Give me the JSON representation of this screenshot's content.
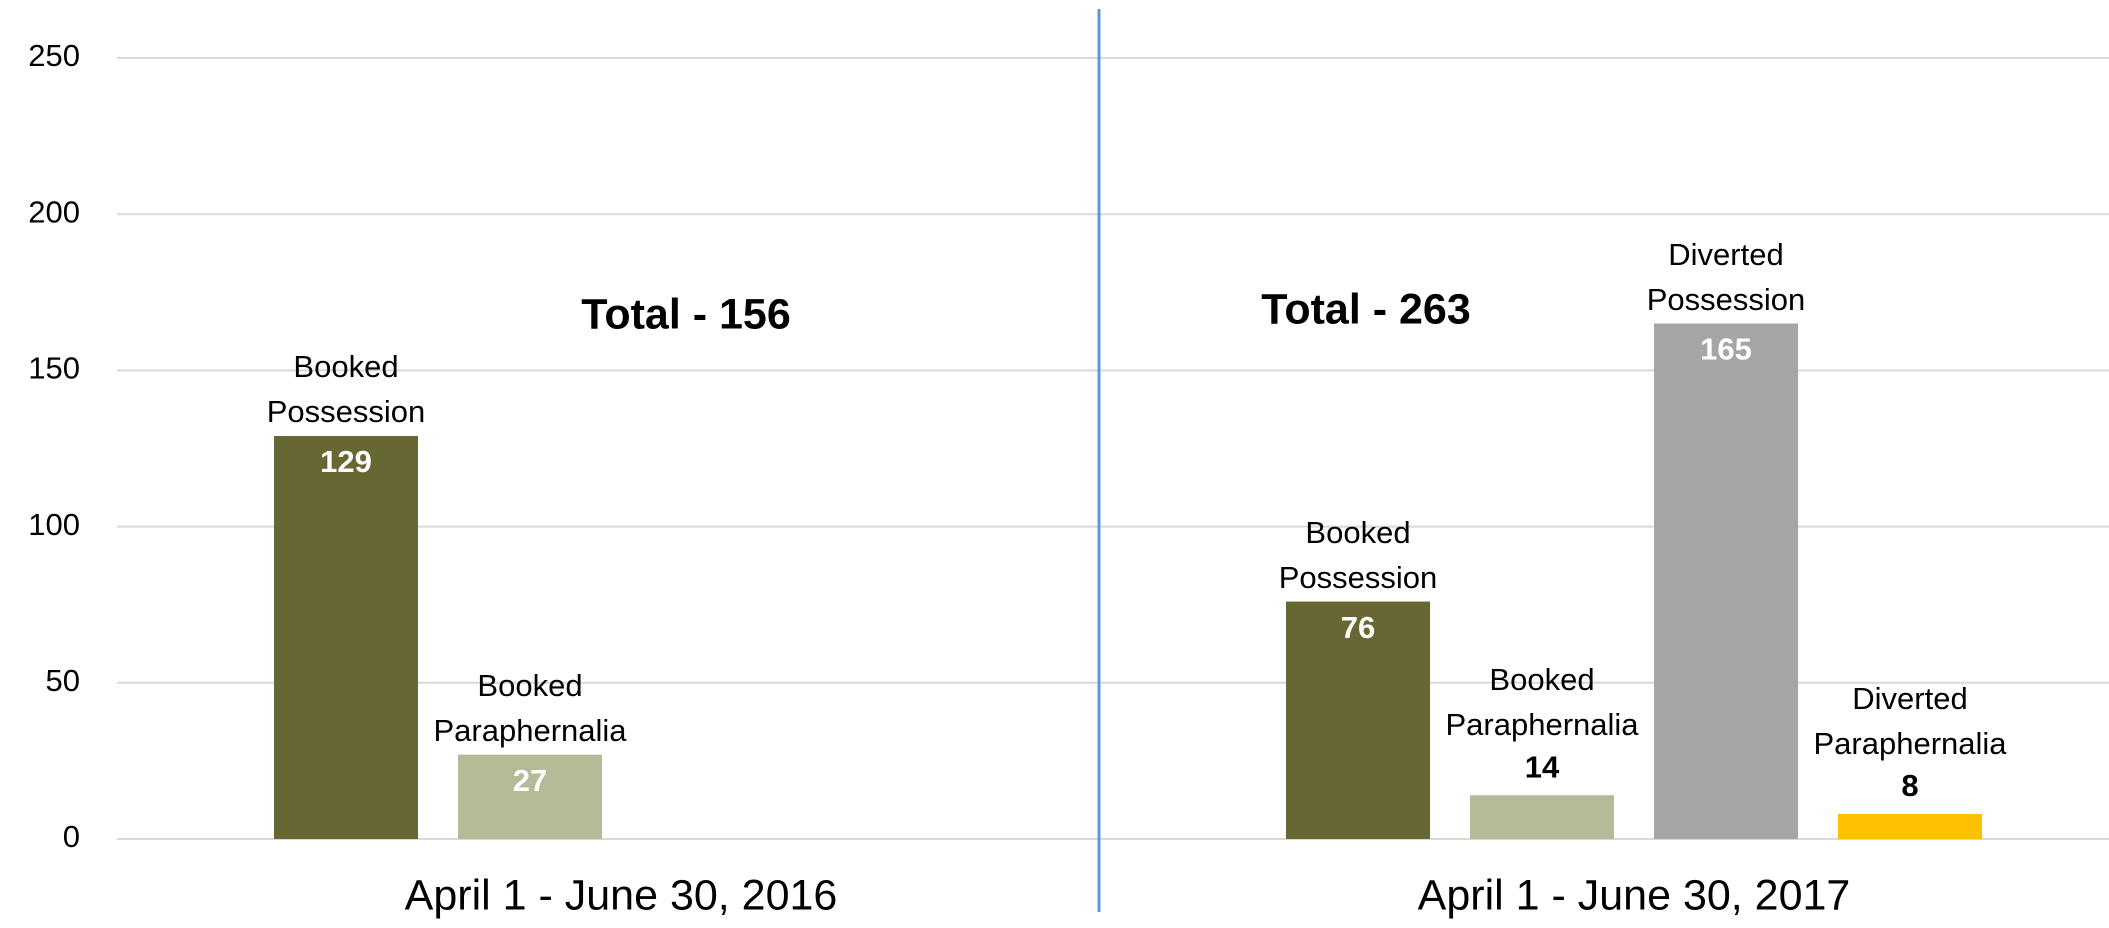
{
  "chart_data": {
    "type": "bar",
    "categories": [
      "April 1 - June 30, 2016",
      "April 1 - June 30, 2017"
    ],
    "series": [
      {
        "name": "Booked Possession",
        "color": "#676733",
        "values": [
          129,
          76
        ]
      },
      {
        "name": "Booked Paraphernalia",
        "color": "#b5bb96",
        "values": [
          27,
          14
        ]
      },
      {
        "name": "Diverted Possession",
        "color": "#a5a5a5",
        "values": [
          null,
          165
        ]
      },
      {
        "name": "Diverted Paraphernalia",
        "color": "#ffc000",
        "values": [
          null,
          8
        ]
      }
    ],
    "annotations": [
      "Total - 156",
      "Total - 263"
    ],
    "ylim": [
      0,
      250
    ],
    "yticks": [
      0,
      50,
      100,
      150,
      200,
      250
    ],
    "grid": true
  }
}
